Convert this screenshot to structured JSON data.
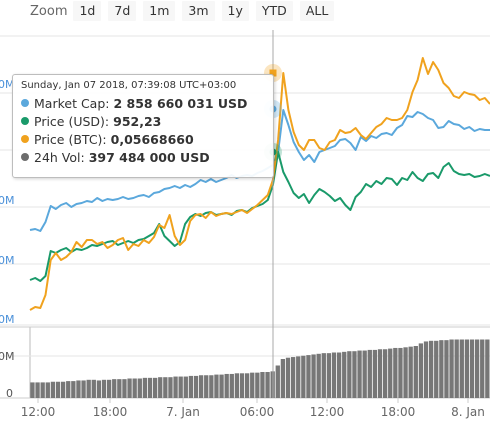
{
  "zoom": {
    "label": "Zoom",
    "buttons": [
      "1d",
      "7d",
      "1m",
      "3m",
      "1y",
      "YTD",
      "ALL"
    ]
  },
  "tooltip": {
    "date": "Sunday, Jan 07 2018, 07:39:08 UTC+03:00",
    "rows": [
      {
        "name": "Market Cap:",
        "value": "2 858 660 031 USD",
        "color": "#5ba8dc"
      },
      {
        "name": "Price (USD):",
        "value": "952,23",
        "color": "#1a9a6a"
      },
      {
        "name": "Price (BTC):",
        "value": "0,05668660",
        "color": "#f0a21e"
      },
      {
        "name": "24h Vol:",
        "value": "397 484 000 USD",
        "color": "#6d6d6d"
      }
    ]
  },
  "chart_data": {
    "type": "line",
    "x_tick_labels": [
      "12:00",
      "18:00",
      "7. Jan",
      "06:00",
      "12:00",
      "18:00",
      "8. Jan"
    ],
    "y_tick_labels_partial": [
      "0M",
      "0M",
      "0M",
      "0M"
    ],
    "volume_tick_labels": [
      "0M",
      "0"
    ],
    "crosshair_label": "Jan 07 2018, 07:39:08",
    "colors": {
      "market_cap": "#5ba8dc",
      "price_usd": "#1a9a6a",
      "price_btc": "#f0a21e",
      "volume": "#777777"
    },
    "series": [
      {
        "name": "Market Cap",
        "values": [
          230,
          229,
          231,
          222,
          206,
          209,
          205,
          203,
          207,
          204,
          203,
          201,
          202,
          198,
          201,
          199,
          200,
          199,
          197,
          199,
          198,
          196,
          195,
          197,
          193,
          192,
          189,
          188,
          186,
          188,
          185,
          187,
          184,
          180,
          182,
          179,
          182,
          180,
          178,
          175,
          178,
          176,
          175,
          176,
          173,
          171,
          168,
          165,
          152,
          110,
          125,
          142,
          152,
          160,
          155,
          162,
          152,
          150,
          148,
          146,
          140,
          139,
          143,
          150,
          137,
          141,
          136,
          138,
          134,
          133,
          135,
          128,
          125,
          116,
          117,
          112,
          114,
          118,
          120,
          128,
          127,
          121,
          124,
          125,
          129,
          127,
          131,
          129,
          130,
          130
        ]
      },
      {
        "name": "Price (USD)",
        "values": [
          280,
          278,
          281,
          276,
          251,
          253,
          250,
          248,
          252,
          249,
          250,
          248,
          245,
          246,
          244,
          242,
          241,
          245,
          243,
          241,
          243,
          240,
          239,
          236,
          233,
          224,
          236,
          241,
          246,
          242,
          224,
          217,
          214,
          216,
          213,
          212,
          215,
          214,
          213,
          215,
          211,
          210,
          212,
          208,
          206,
          204,
          200,
          185,
          152,
          172,
          182,
          193,
          198,
          194,
          203,
          195,
          189,
          192,
          196,
          201,
          198,
          205,
          210,
          197,
          192,
          184,
          187,
          181,
          184,
          178,
          179,
          185,
          178,
          180,
          172,
          178,
          181,
          174,
          173,
          178,
          167,
          163,
          171,
          174,
          175,
          174,
          177,
          176,
          174,
          176
        ]
      },
      {
        "name": "Price (BTC)",
        "values": [
          310,
          307,
          308,
          295,
          260,
          253,
          260,
          257,
          252,
          242,
          247,
          240,
          240,
          244,
          242,
          248,
          245,
          240,
          238,
          250,
          244,
          246,
          240,
          243,
          237,
          225,
          228,
          215,
          236,
          245,
          240,
          221,
          215,
          214,
          218,
          212,
          216,
          214,
          213,
          214,
          212,
          210,
          213,
          209,
          205,
          200,
          195,
          180,
          140,
          73,
          110,
          132,
          145,
          150,
          140,
          140,
          148,
          150,
          142,
          140,
          130,
          133,
          132,
          128,
          135,
          139,
          133,
          127,
          124,
          118,
          120,
          120,
          118,
          110,
          92,
          80,
          58,
          74,
          62,
          70,
          83,
          88,
          96,
          98,
          92,
          94,
          95,
          100,
          98,
          104
        ]
      },
      {
        "name": "24h Vol",
        "values": [
          0.24,
          0.24,
          0.24,
          0.24,
          0.25,
          0.25,
          0.25,
          0.26,
          0.26,
          0.27,
          0.27,
          0.28,
          0.28,
          0.27,
          0.28,
          0.28,
          0.29,
          0.29,
          0.29,
          0.3,
          0.3,
          0.3,
          0.31,
          0.31,
          0.31,
          0.32,
          0.32,
          0.32,
          0.33,
          0.33,
          0.33,
          0.34,
          0.34,
          0.35,
          0.35,
          0.35,
          0.36,
          0.36,
          0.37,
          0.37,
          0.38,
          0.38,
          0.38,
          0.39,
          0.39,
          0.4,
          0.4,
          0.41,
          0.5,
          0.6,
          0.62,
          0.63,
          0.64,
          0.65,
          0.66,
          0.67,
          0.68,
          0.69,
          0.69,
          0.7,
          0.7,
          0.71,
          0.72,
          0.72,
          0.73,
          0.73,
          0.74,
          0.74,
          0.75,
          0.75,
          0.76,
          0.77,
          0.77,
          0.78,
          0.79,
          0.8,
          0.84,
          0.87,
          0.88,
          0.88,
          0.89,
          0.89,
          0.9,
          0.9,
          0.9,
          0.9,
          0.9,
          0.9,
          0.9,
          0.9
        ]
      }
    ],
    "grid": true,
    "legend": "tooltip"
  }
}
